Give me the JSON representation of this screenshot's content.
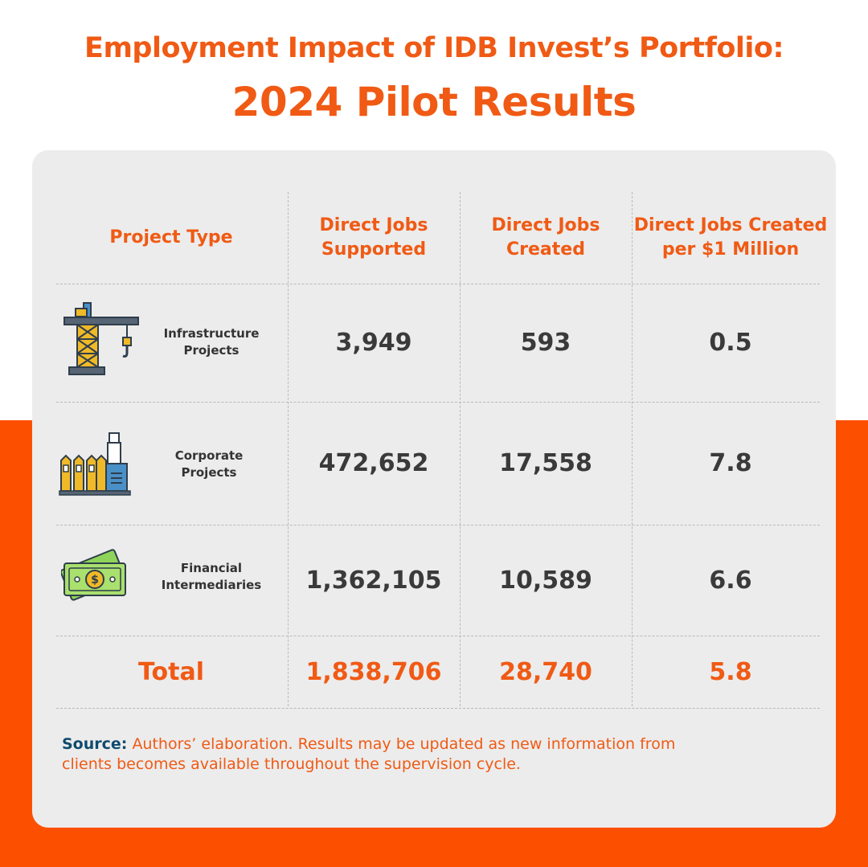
{
  "header": {
    "title_line1": "Employment Impact of IDB Invest’s Portfolio:",
    "title_line2": "2024 Pilot Results"
  },
  "colors": {
    "accent": "#f05a14",
    "band": "#fc5000",
    "card": "#ececec",
    "value_text": "#3a3a3a",
    "source_label": "#0f4a6e"
  },
  "chart_data": {
    "type": "table",
    "columns": [
      "Project Type",
      "Direct Jobs Supported",
      "Direct Jobs Created",
      "Direct Jobs Created per $1 Million"
    ],
    "rows": [
      {
        "project_type": "Infrastructure Projects",
        "icon": "construction-crane-icon",
        "direct_jobs_supported": "3,949",
        "direct_jobs_created": "593",
        "per_million": "0.5"
      },
      {
        "project_type": "Corporate Projects",
        "icon": "factory-icon",
        "direct_jobs_supported": "472,652",
        "direct_jobs_created": "17,558",
        "per_million": "7.8"
      },
      {
        "project_type": "Financial Intermediaries",
        "icon": "cash-banknotes-icon",
        "direct_jobs_supported": "1,362,105",
        "direct_jobs_created": "10,589",
        "per_million": "6.6"
      }
    ],
    "total": {
      "label": "Total",
      "direct_jobs_supported": "1,838,706",
      "direct_jobs_created": "28,740",
      "per_million": "5.8"
    }
  },
  "source": {
    "label": "Source:",
    "text": "Authors’ elaboration. Results may be updated as new information from clients becomes available throughout the supervision cycle."
  }
}
